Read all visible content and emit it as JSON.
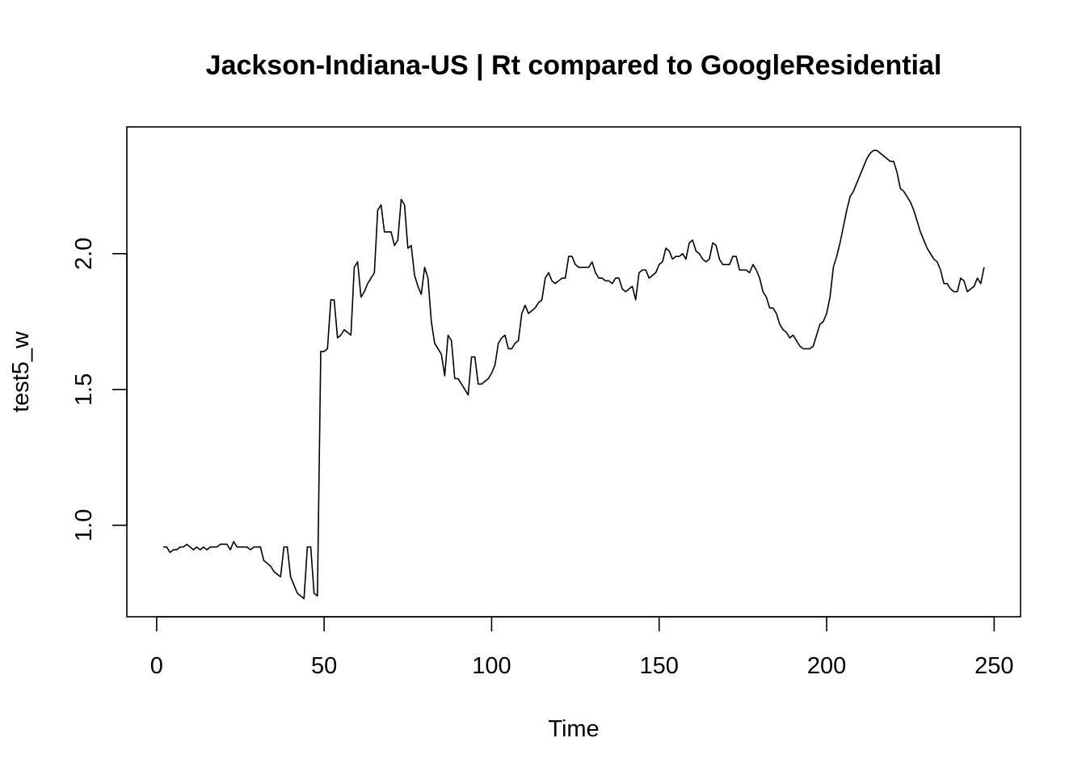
{
  "chart_data": {
    "type": "line",
    "title": "Jackson-Indiana-US | Rt compared to GoogleResidential",
    "xlabel": "Time",
    "ylabel": "test5_w",
    "xlim": [
      1,
      248
    ],
    "ylim": [
      0.73,
      2.4
    ],
    "xticks": [
      0,
      50,
      100,
      150,
      200,
      250
    ],
    "yticks": [
      1.0,
      1.5,
      2.0
    ],
    "xtick_labels": [
      "0",
      "50",
      "100",
      "150",
      "200",
      "250"
    ],
    "ytick_labels": [
      "1.0",
      "1.5",
      "2.0"
    ],
    "grid": false,
    "legend": "none",
    "line_color": "#000000",
    "series": [
      {
        "x_start": 2,
        "values": [
          0.92,
          0.92,
          0.9,
          0.91,
          0.91,
          0.92,
          0.92,
          0.93,
          0.92,
          0.91,
          0.92,
          0.91,
          0.92,
          0.91,
          0.92,
          0.92,
          0.92,
          0.93,
          0.93,
          0.93,
          0.91,
          0.94,
          0.92,
          0.92,
          0.92,
          0.92,
          0.91,
          0.92,
          0.92,
          0.92,
          0.87,
          0.86,
          0.85,
          0.83,
          0.82,
          0.81,
          0.92,
          0.92,
          0.81,
          0.78,
          0.75,
          0.74,
          0.73,
          0.92,
          0.92,
          0.75,
          0.74,
          1.64,
          1.64,
          1.65,
          1.83,
          1.83,
          1.69,
          1.7,
          1.72,
          1.71,
          1.7,
          1.95,
          1.97,
          1.84,
          1.86,
          1.89,
          1.91,
          1.93,
          2.16,
          2.18,
          2.08,
          2.08,
          2.08,
          2.03,
          2.05,
          2.2,
          2.18,
          2.02,
          2.03,
          1.92,
          1.88,
          1.85,
          1.95,
          1.91,
          1.75,
          1.67,
          1.65,
          1.63,
          1.55,
          1.7,
          1.68,
          1.54,
          1.54,
          1.52,
          1.5,
          1.48,
          1.62,
          1.62,
          1.52,
          1.52,
          1.53,
          1.54,
          1.56,
          1.59,
          1.67,
          1.69,
          1.7,
          1.65,
          1.65,
          1.67,
          1.68,
          1.78,
          1.81,
          1.78,
          1.79,
          1.8,
          1.82,
          1.83,
          1.91,
          1.93,
          1.9,
          1.89,
          1.9,
          1.91,
          1.91,
          1.99,
          1.99,
          1.96,
          1.95,
          1.95,
          1.95,
          1.95,
          1.97,
          1.93,
          1.91,
          1.91,
          1.9,
          1.9,
          1.89,
          1.91,
          1.91,
          1.87,
          1.86,
          1.87,
          1.88,
          1.83,
          1.93,
          1.94,
          1.94,
          1.91,
          1.92,
          1.93,
          1.96,
          1.97,
          2.02,
          2.01,
          1.98,
          1.99,
          1.99,
          2.0,
          1.98,
          2.04,
          2.05,
          2.01,
          2.0,
          1.98,
          1.97,
          1.98,
          2.04,
          2.03,
          1.98,
          1.96,
          1.96,
          1.96,
          1.99,
          1.99,
          1.94,
          1.94,
          1.94,
          1.93,
          1.96,
          1.94,
          1.91,
          1.86,
          1.84,
          1.8,
          1.8,
          1.78,
          1.74,
          1.72,
          1.71,
          1.69,
          1.7,
          1.68,
          1.66,
          1.65,
          1.65,
          1.65,
          1.66,
          1.7,
          1.74,
          1.75,
          1.78,
          1.84,
          1.95,
          1.99,
          2.04,
          2.1,
          2.16,
          2.21,
          2.23,
          2.26,
          2.29,
          2.32,
          2.35,
          2.37,
          2.38,
          2.38,
          2.37,
          2.36,
          2.35,
          2.34,
          2.34,
          2.3,
          2.24,
          2.23,
          2.21,
          2.19,
          2.16,
          2.12,
          2.08,
          2.05,
          2.02,
          2.0,
          1.98,
          1.97,
          1.94,
          1.89,
          1.89,
          1.87,
          1.86,
          1.86,
          1.91,
          1.9,
          1.86,
          1.87,
          1.88,
          1.91,
          1.89,
          1.95
        ]
      }
    ]
  }
}
